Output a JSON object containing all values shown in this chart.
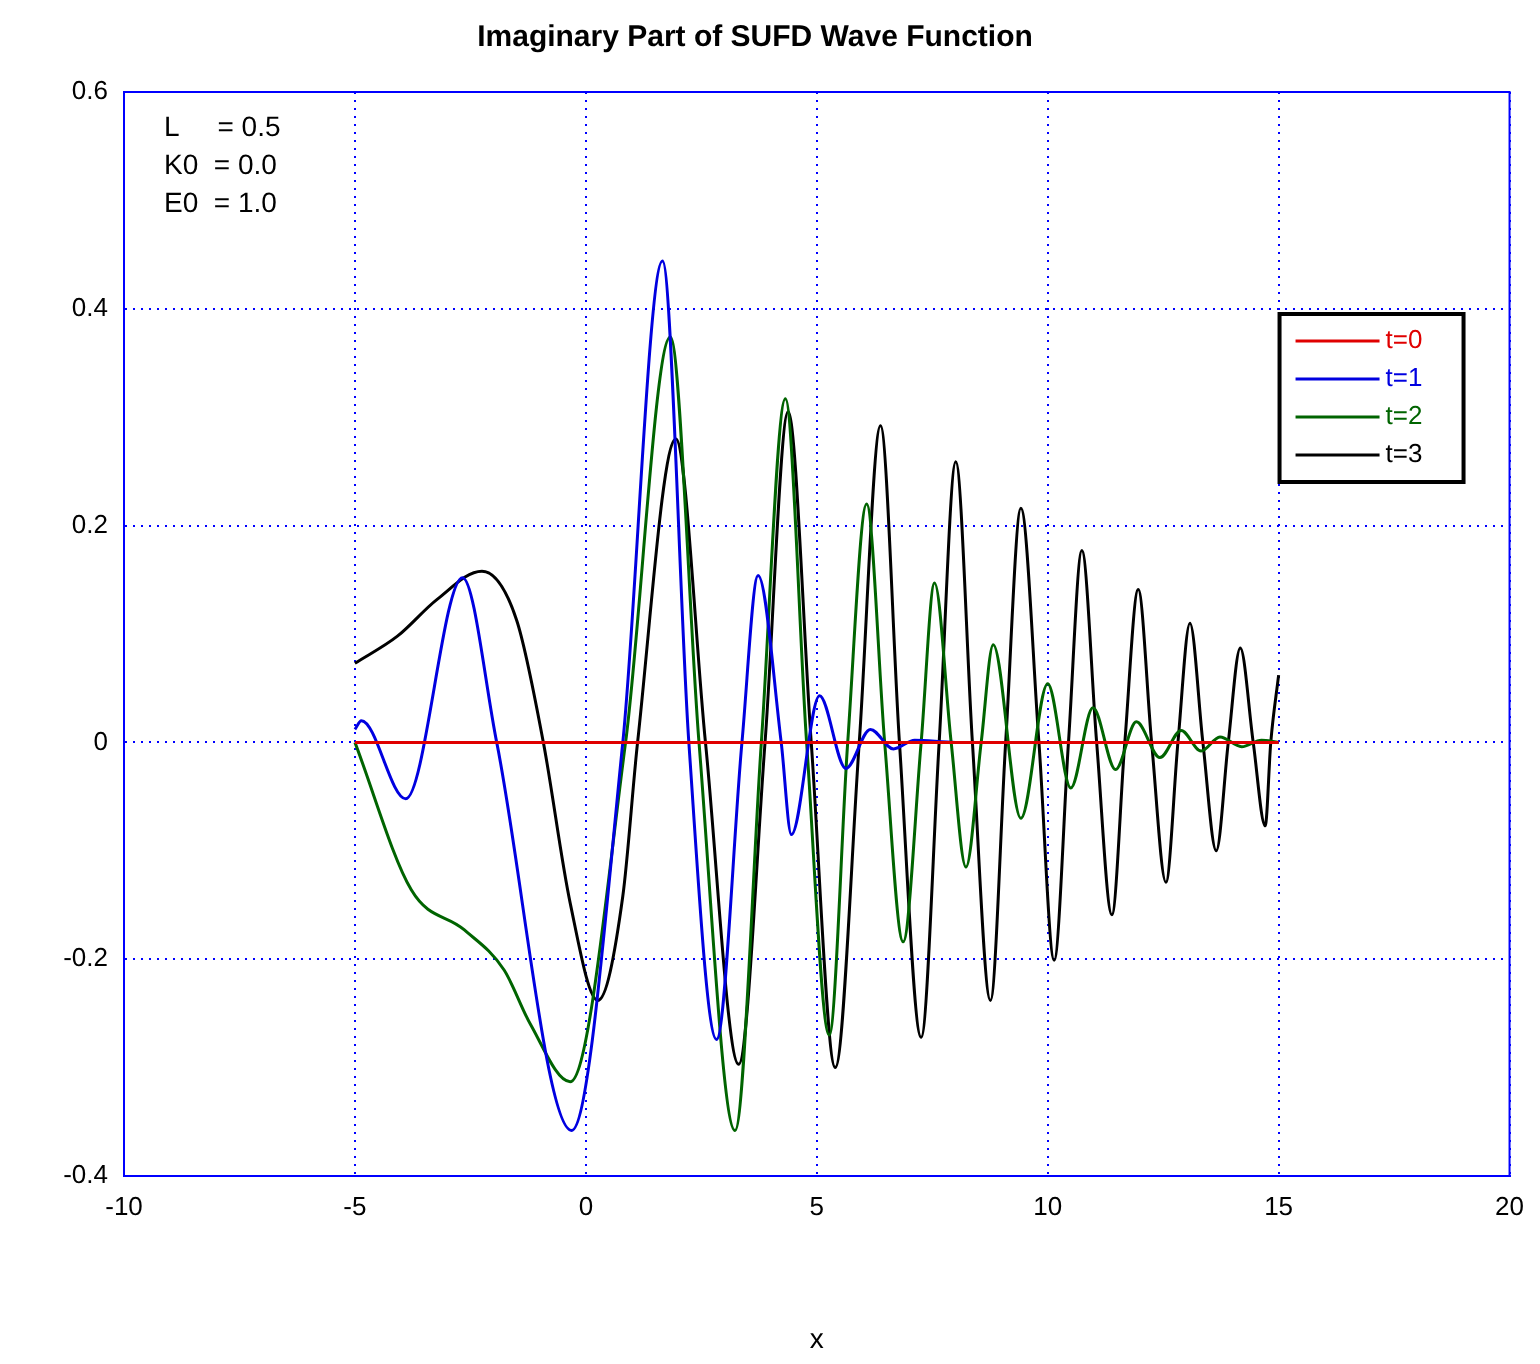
{
  "chart_data": {
    "type": "line",
    "title": "Imaginary Part of SUFD Wave Function",
    "xlabel": "x",
    "xlim": [
      -10,
      20
    ],
    "xticks": [
      -10,
      -5,
      0,
      5,
      10,
      15,
      20
    ],
    "ylim": [
      -0.4,
      0.6
    ],
    "yticks": [
      -0.4,
      -0.2,
      0,
      0.2,
      0.4,
      0.6
    ],
    "grid": true,
    "legend": "top right",
    "marker": "none",
    "line_style": "solid",
    "annotations": [
      "L     = 0.5",
      "K0  = 0.0",
      "E0  = 1.0"
    ],
    "series": [
      {
        "name": "t=0",
        "color": "#e00000",
        "x": [
          -5,
          15
        ],
        "values": [
          0,
          0
        ]
      },
      {
        "name": "t=1",
        "color": "#0000e0",
        "x": [
          -5,
          -4.86,
          -3.9,
          -2.67,
          -1.93,
          -0.31,
          0.8,
          1.66,
          2.23,
          2.83,
          3.38,
          3.73,
          4.23,
          4.45,
          5.06,
          5.63,
          6.16,
          6.66,
          7.12,
          8,
          15
        ],
        "values": [
          0.012,
          0.02,
          -0.052,
          0.152,
          0,
          -0.358,
          0,
          0.444,
          0,
          -0.274,
          0,
          0.154,
          0,
          -0.085,
          0.043,
          -0.024,
          0.012,
          -0.006,
          0.002,
          0,
          0
        ]
      },
      {
        "name": "t=2",
        "color": "#006400",
        "x": [
          -5,
          -3.78,
          -2.63,
          -1.77,
          -1.2,
          -0.34,
          0.86,
          1.83,
          2.45,
          3.23,
          3.8,
          4.32,
          4.78,
          5.27,
          5.67,
          6.08,
          6.47,
          6.87,
          7.26,
          7.55,
          7.91,
          8.23,
          8.56,
          8.82,
          9.42,
          10,
          10.5,
          10.98,
          11.47,
          11.92,
          12.43,
          12.89,
          13.32,
          13.73,
          14.2,
          14.63,
          15
        ],
        "values": [
          0,
          -0.136,
          -0.173,
          -0.21,
          -0.26,
          -0.313,
          0,
          0.374,
          0,
          -0.358,
          0,
          0.317,
          0,
          -0.27,
          0,
          0.22,
          0,
          -0.184,
          0,
          0.147,
          0,
          -0.115,
          0,
          0.09,
          -0.07,
          0.054,
          -0.042,
          0.032,
          -0.025,
          0.019,
          -0.014,
          0.011,
          -0.008,
          0.005,
          -0.004,
          0.002,
          0
        ]
      },
      {
        "name": "t=3",
        "color": "#000000",
        "x": [
          -5,
          -4.08,
          -3.22,
          -2.25,
          -1.5,
          -0.92,
          -0.34,
          0.26,
          0.8,
          1.12,
          1.95,
          2.59,
          3.31,
          3.88,
          4.38,
          4.88,
          5.4,
          5.92,
          6.38,
          6.79,
          7.26,
          7.65,
          8.01,
          8.37,
          8.76,
          9.09,
          9.42,
          9.81,
          10.14,
          10.45,
          10.74,
          11.06,
          11.39,
          11.67,
          11.96,
          12.25,
          12.56,
          12.82,
          13.08,
          13.36,
          13.65,
          13.91,
          14.17,
          14.45,
          14.71,
          14.83,
          15
        ],
        "values": [
          0.073,
          0.098,
          0.132,
          0.158,
          0.113,
          0,
          -0.148,
          -0.238,
          -0.142,
          0,
          0.28,
          0,
          -0.297,
          0,
          0.305,
          0,
          -0.3,
          0,
          0.292,
          0,
          -0.272,
          0,
          0.259,
          0,
          -0.238,
          0,
          0.216,
          0,
          -0.201,
          0,
          0.177,
          0,
          -0.159,
          0,
          0.141,
          0,
          -0.129,
          0,
          0.11,
          0,
          -0.1,
          0,
          0.087,
          0,
          -0.077,
          0,
          0.062
        ]
      }
    ]
  }
}
